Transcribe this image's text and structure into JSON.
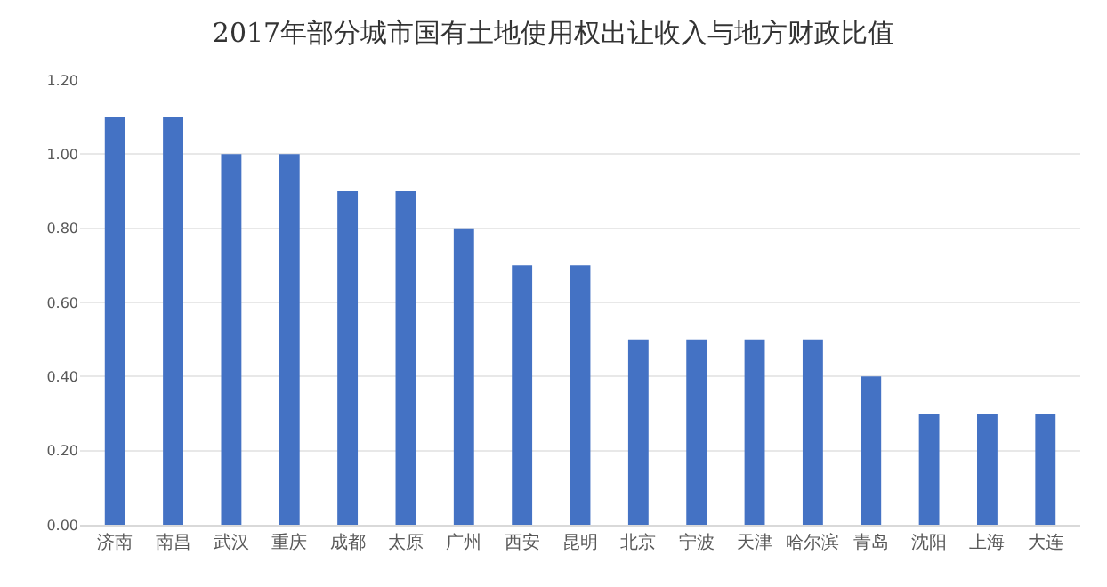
{
  "chart_data": {
    "type": "bar",
    "title": "2017年部分城市国有土地使用权出让收入与地方财政比值",
    "categories": [
      "济南",
      "南昌",
      "武汉",
      "重庆",
      "成都",
      "太原",
      "广州",
      "西安",
      "昆明",
      "北京",
      "宁波",
      "天津",
      "哈尔滨",
      "青岛",
      "沈阳",
      "上海",
      "大连"
    ],
    "values": [
      1.1,
      1.1,
      1.0,
      1.0,
      0.9,
      0.9,
      0.8,
      0.7,
      0.7,
      0.5,
      0.5,
      0.5,
      0.5,
      0.4,
      0.3,
      0.3,
      0.3
    ],
    "color": "#4472c4",
    "ylim": [
      0,
      1.2
    ],
    "yticks": [
      {
        "value": 0,
        "label": "0.00"
      },
      {
        "value": 0.2,
        "label": "0.20"
      },
      {
        "value": 0.4,
        "label": "0.40"
      },
      {
        "value": 0.6,
        "label": "0.60"
      },
      {
        "value": 0.8,
        "label": "0.80"
      },
      {
        "value": 1.0,
        "label": "1.00"
      },
      {
        "value": 1.2,
        "label": "1.20"
      }
    ],
    "grid": "y"
  }
}
